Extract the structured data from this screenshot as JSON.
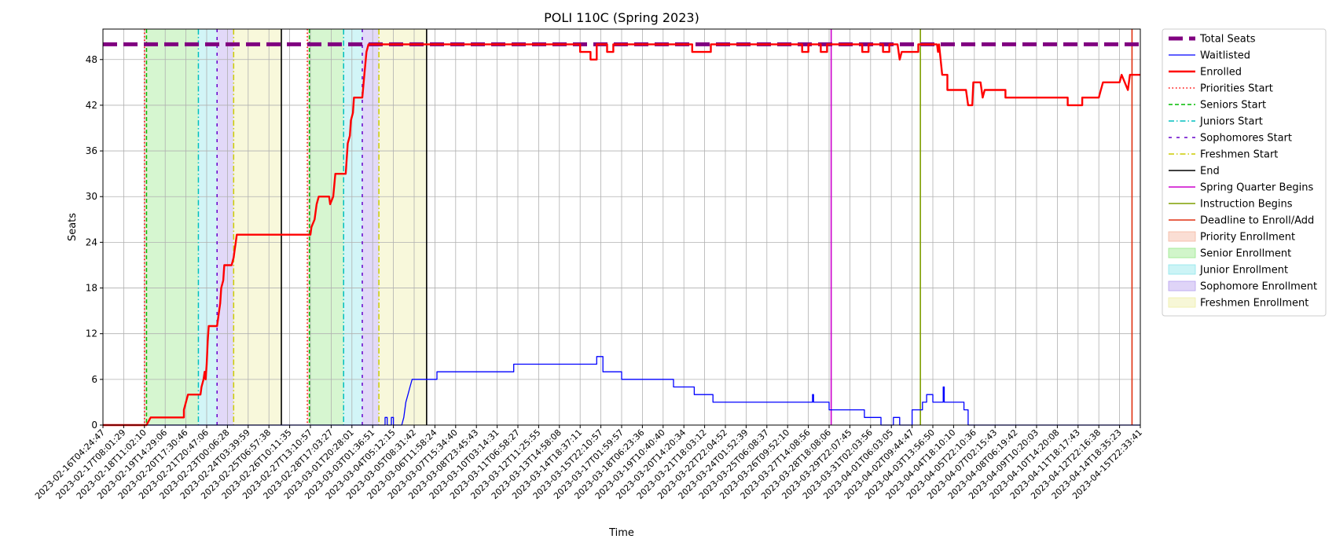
{
  "chart_data": {
    "type": "line",
    "title": "POLI 110C (Spring 2023)",
    "xlabel": "Time",
    "ylabel": "Seats",
    "ylim": [
      0,
      52
    ],
    "yticks": [
      0,
      6,
      12,
      18,
      24,
      30,
      36,
      42,
      48
    ],
    "grid": true,
    "legend_position": "outside-right",
    "x_ticks": [
      "2023-02-16T04:24:47",
      "2023-02-17T08:01:29",
      "2023-02-18T11:02:10",
      "2023-02-19T14:29:06",
      "2023-02-20T17:30:46",
      "2023-02-21T20:47:06",
      "2023-02-23T00:06:28",
      "2023-02-24T03:39:59",
      "2023-02-25T06:57:38",
      "2023-02-26T10:11:35",
      "2023-02-27T13:10:57",
      "2023-02-28T17:03:27",
      "2023-03-01T20:28:01",
      "2023-03-03T01:36:51",
      "2023-03-04T05:12:15",
      "2023-03-05T08:31:42",
      "2023-03-06T11:58:24",
      "2023-03-07T15:34:40",
      "2023-03-08T23:45:43",
      "2023-03-10T03:14:31",
      "2023-03-11T06:58:27",
      "2023-03-12T11:25:55",
      "2023-03-13T14:58:08",
      "2023-03-14T18:37:11",
      "2023-03-15T22:10:57",
      "2023-03-17T01:59:57",
      "2023-03-18T06:23:36",
      "2023-03-19T10:40:40",
      "2023-03-20T14:20:34",
      "2023-03-21T18:03:12",
      "2023-03-22T22:04:52",
      "2023-03-24T01:52:39",
      "2023-03-25T06:08:37",
      "2023-03-26T09:52:10",
      "2023-03-27T14:08:56",
      "2023-03-28T18:08:06",
      "2023-03-29T22:07:45",
      "2023-03-31T02:03:56",
      "2023-04-01T06:03:05",
      "2023-04-02T09:44:47",
      "2023-04-03T13:56:50",
      "2023-04-04T18:10:10",
      "2023-04-05T22:10:36",
      "2023-04-07T02:15:43",
      "2023-04-08T06:19:42",
      "2023-04-09T10:20:03",
      "2023-04-10T14:20:08",
      "2023-04-11T18:17:43",
      "2023-04-12T22:16:38",
      "2023-04-14T18:35:23",
      "2023-04-15T22:33:41"
    ],
    "x_range_index": [
      0,
      50
    ],
    "series": [
      {
        "name": "Total Seats",
        "color": "#800080",
        "style": "dashed-thick",
        "points": [
          [
            0,
            50
          ],
          [
            50,
            50
          ]
        ]
      },
      {
        "name": "Waitlisted",
        "color": "#0000ff",
        "style": "solid-thin",
        "points": [
          [
            0,
            0
          ],
          [
            13.6,
            0
          ],
          [
            13.6,
            1
          ],
          [
            13.7,
            1
          ],
          [
            13.7,
            0
          ],
          [
            13.9,
            0
          ],
          [
            13.9,
            1
          ],
          [
            14.0,
            1
          ],
          [
            14.0,
            0
          ],
          [
            14.4,
            0
          ],
          [
            14.5,
            1
          ],
          [
            14.6,
            3
          ],
          [
            14.7,
            4
          ],
          [
            14.8,
            5
          ],
          [
            14.9,
            6
          ],
          [
            16.1,
            6
          ],
          [
            16.1,
            7
          ],
          [
            19.8,
            7
          ],
          [
            19.8,
            8
          ],
          [
            23.8,
            8
          ],
          [
            23.8,
            9
          ],
          [
            24.1,
            9
          ],
          [
            24.1,
            7
          ],
          [
            25.0,
            7
          ],
          [
            25.0,
            6
          ],
          [
            27.5,
            6
          ],
          [
            27.5,
            5
          ],
          [
            28.5,
            5
          ],
          [
            28.5,
            4
          ],
          [
            29.4,
            4
          ],
          [
            29.4,
            3
          ],
          [
            34.2,
            3
          ],
          [
            34.2,
            4
          ],
          [
            34.25,
            4
          ],
          [
            34.25,
            3
          ],
          [
            35.0,
            3
          ],
          [
            35.0,
            2
          ],
          [
            36.7,
            2
          ],
          [
            36.7,
            1
          ],
          [
            37.5,
            1
          ],
          [
            37.5,
            0
          ],
          [
            38.1,
            0
          ],
          [
            38.1,
            1
          ],
          [
            38.4,
            1
          ],
          [
            38.4,
            0
          ],
          [
            39.0,
            0
          ],
          [
            39.0,
            2
          ],
          [
            39.5,
            2
          ],
          [
            39.5,
            3
          ],
          [
            39.7,
            3
          ],
          [
            39.7,
            4
          ],
          [
            40.0,
            4
          ],
          [
            40.0,
            3
          ],
          [
            40.5,
            3
          ],
          [
            40.5,
            5
          ],
          [
            40.55,
            5
          ],
          [
            40.55,
            3
          ],
          [
            41.5,
            3
          ],
          [
            41.5,
            2
          ],
          [
            41.7,
            2
          ],
          [
            41.7,
            0
          ],
          [
            50,
            0
          ]
        ]
      },
      {
        "name": "Enrolled",
        "color": "#ff0000",
        "style": "solid-thick",
        "points": [
          [
            0,
            0
          ],
          [
            2.1,
            0
          ],
          [
            2.3,
            1
          ],
          [
            3.9,
            1
          ],
          [
            3.9,
            2
          ],
          [
            4.0,
            3
          ],
          [
            4.1,
            4
          ],
          [
            4.7,
            4
          ],
          [
            4.75,
            5
          ],
          [
            4.85,
            6
          ],
          [
            4.9,
            7
          ],
          [
            4.95,
            6
          ],
          [
            5.0,
            8
          ],
          [
            5.05,
            11
          ],
          [
            5.1,
            13
          ],
          [
            5.5,
            13
          ],
          [
            5.55,
            14
          ],
          [
            5.65,
            16
          ],
          [
            5.7,
            18
          ],
          [
            5.8,
            19
          ],
          [
            5.85,
            21
          ],
          [
            6.2,
            21
          ],
          [
            6.3,
            22
          ],
          [
            6.35,
            23
          ],
          [
            6.4,
            24
          ],
          [
            6.45,
            25
          ],
          [
            9.9,
            25
          ],
          [
            10.0,
            25
          ],
          [
            10.05,
            26
          ],
          [
            10.2,
            27
          ],
          [
            10.3,
            29
          ],
          [
            10.4,
            30
          ],
          [
            10.9,
            30
          ],
          [
            10.95,
            29
          ],
          [
            11.1,
            30
          ],
          [
            11.2,
            33
          ],
          [
            11.7,
            33
          ],
          [
            11.8,
            37
          ],
          [
            11.9,
            38
          ],
          [
            11.95,
            40
          ],
          [
            12.05,
            41
          ],
          [
            12.1,
            43
          ],
          [
            12.5,
            43
          ],
          [
            12.6,
            46
          ],
          [
            12.7,
            49
          ],
          [
            12.8,
            50
          ],
          [
            23.0,
            50
          ],
          [
            23.0,
            49
          ],
          [
            23.5,
            49
          ],
          [
            23.5,
            48
          ],
          [
            23.8,
            48
          ],
          [
            23.8,
            50
          ],
          [
            24.3,
            50
          ],
          [
            24.3,
            49
          ],
          [
            24.6,
            49
          ],
          [
            24.6,
            50
          ],
          [
            28.4,
            50
          ],
          [
            28.4,
            49
          ],
          [
            29.3,
            49
          ],
          [
            29.3,
            50
          ],
          [
            33.7,
            50
          ],
          [
            33.7,
            49
          ],
          [
            34.0,
            49
          ],
          [
            34.0,
            50
          ],
          [
            34.6,
            50
          ],
          [
            34.6,
            49
          ],
          [
            34.9,
            49
          ],
          [
            34.9,
            50
          ],
          [
            36.6,
            50
          ],
          [
            36.6,
            49
          ],
          [
            36.9,
            49
          ],
          [
            36.9,
            50
          ],
          [
            37.6,
            50
          ],
          [
            37.6,
            49
          ],
          [
            37.9,
            49
          ],
          [
            37.9,
            50
          ],
          [
            38.3,
            50
          ],
          [
            38.4,
            48
          ],
          [
            38.5,
            49
          ],
          [
            39.3,
            49
          ],
          [
            39.3,
            50
          ],
          [
            40.2,
            50
          ],
          [
            40.25,
            49
          ],
          [
            40.3,
            50
          ],
          [
            40.45,
            46
          ],
          [
            40.7,
            46
          ],
          [
            40.7,
            44
          ],
          [
            41.6,
            44
          ],
          [
            41.7,
            42
          ],
          [
            41.9,
            42
          ],
          [
            41.95,
            45
          ],
          [
            42.3,
            45
          ],
          [
            42.4,
            43
          ],
          [
            42.5,
            44
          ],
          [
            43.5,
            44
          ],
          [
            43.5,
            43
          ],
          [
            46.5,
            43
          ],
          [
            46.5,
            42
          ],
          [
            47.2,
            42
          ],
          [
            47.2,
            43
          ],
          [
            48.0,
            43
          ],
          [
            48.1,
            44
          ],
          [
            48.2,
            45
          ],
          [
            49.0,
            45
          ],
          [
            49.1,
            46
          ],
          [
            49.25,
            45
          ],
          [
            49.4,
            44
          ],
          [
            49.5,
            46
          ],
          [
            50,
            46
          ]
        ]
      }
    ],
    "vlines": [
      {
        "name": "Priorities Start",
        "color": "#ff0000",
        "style": "dotted",
        "x": [
          2.0,
          9.85
        ]
      },
      {
        "name": "Seniors Start",
        "color": "#00bb00",
        "style": "dashed",
        "x": [
          2.1,
          9.95
        ]
      },
      {
        "name": "Juniors Start",
        "color": "#00bfbf",
        "style": "dashdot",
        "x": [
          4.6,
          11.6
        ]
      },
      {
        "name": "Sophomores Start",
        "color": "#6600cc",
        "style": "loosedash",
        "x": [
          5.5,
          12.5
        ]
      },
      {
        "name": "Freshmen Start",
        "color": "#cccc00",
        "style": "dashdot",
        "x": [
          6.3,
          13.3
        ]
      },
      {
        "name": "End",
        "color": "#000000",
        "style": "solid",
        "x": [
          8.6,
          15.6
        ]
      },
      {
        "name": "Spring Quarter Begins",
        "color": "#cc00cc",
        "style": "solid",
        "x": [
          35.1
        ]
      },
      {
        "name": "Instruction Begins",
        "color": "#7f9f00",
        "style": "solid",
        "x": [
          39.4
        ]
      },
      {
        "name": "Deadline to Enroll/Add",
        "color": "#e03010",
        "style": "solid",
        "x": [
          49.6
        ]
      }
    ],
    "spans": [
      {
        "name": "Priority Enrollment",
        "color": "#f4b6a0",
        "ranges": [
          [
            2.0,
            2.1
          ],
          [
            9.85,
            9.95
          ]
        ]
      },
      {
        "name": "Senior Enrollment",
        "color": "#98e88a",
        "ranges": [
          [
            2.1,
            4.6
          ],
          [
            9.95,
            11.6
          ]
        ]
      },
      {
        "name": "Junior Enrollment",
        "color": "#8ee6ec",
        "ranges": [
          [
            4.6,
            5.5
          ],
          [
            11.6,
            12.5
          ]
        ]
      },
      {
        "name": "Sophomore Enrollment",
        "color": "#b7a0ee",
        "ranges": [
          [
            5.5,
            6.3
          ],
          [
            12.5,
            13.3
          ]
        ]
      },
      {
        "name": "Freshmen Enrollment",
        "color": "#eeeea6",
        "ranges": [
          [
            6.3,
            8.6
          ],
          [
            13.3,
            15.6
          ]
        ]
      }
    ],
    "legend": [
      {
        "label": "Total Seats",
        "kind": "line",
        "color": "#800080",
        "style": "dashed-thick"
      },
      {
        "label": "Waitlisted",
        "kind": "line",
        "color": "#0000ff",
        "style": "solid-thin"
      },
      {
        "label": "Enrolled",
        "kind": "line",
        "color": "#ff0000",
        "style": "solid-thick"
      },
      {
        "label": "Priorities Start",
        "kind": "line",
        "color": "#ff0000",
        "style": "dotted"
      },
      {
        "label": "Seniors Start",
        "kind": "line",
        "color": "#00bb00",
        "style": "dashed"
      },
      {
        "label": "Juniors Start",
        "kind": "line",
        "color": "#00bfbf",
        "style": "dashdot"
      },
      {
        "label": "Sophomores Start",
        "kind": "line",
        "color": "#6600cc",
        "style": "loosedash"
      },
      {
        "label": "Freshmen Start",
        "kind": "line",
        "color": "#cccc00",
        "style": "dashdot"
      },
      {
        "label": "End",
        "kind": "line",
        "color": "#000000",
        "style": "solid"
      },
      {
        "label": "Spring Quarter Begins",
        "kind": "line",
        "color": "#cc00cc",
        "style": "solid"
      },
      {
        "label": "Instruction Begins",
        "kind": "line",
        "color": "#7f9f00",
        "style": "solid"
      },
      {
        "label": "Deadline to Enroll/Add",
        "kind": "line",
        "color": "#e03010",
        "style": "solid"
      },
      {
        "label": "Priority Enrollment",
        "kind": "patch",
        "color": "#f4b6a0"
      },
      {
        "label": "Senior Enrollment",
        "kind": "patch",
        "color": "#98e88a"
      },
      {
        "label": "Junior Enrollment",
        "kind": "patch",
        "color": "#8ee6ec"
      },
      {
        "label": "Sophomore Enrollment",
        "kind": "patch",
        "color": "#b7a0ee"
      },
      {
        "label": "Freshmen Enrollment",
        "kind": "patch",
        "color": "#eeeea6"
      }
    ]
  }
}
